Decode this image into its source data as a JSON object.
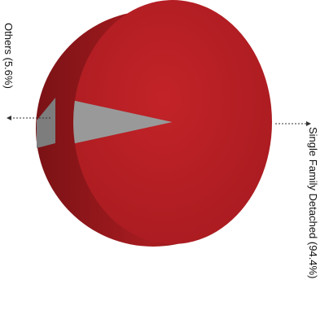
{
  "chart_data": {
    "type": "pie",
    "style": "3d",
    "slices": [
      {
        "label": "Single Family Detached (94.4%)",
        "value": 94.4,
        "color": "#b81f24"
      },
      {
        "label": "Others (5.6%)",
        "value": 5.6,
        "color": "#999999"
      }
    ],
    "title": "",
    "legend": "none",
    "label_orientation": "rotated-vertical"
  }
}
